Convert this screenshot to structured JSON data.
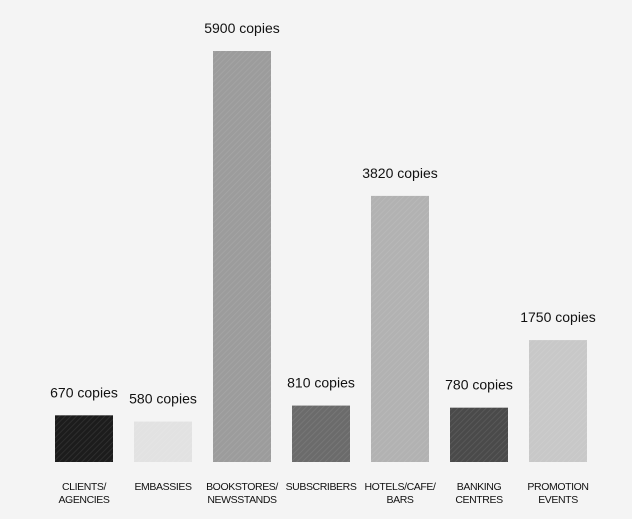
{
  "chart_data": {
    "type": "bar",
    "title": "",
    "xlabel": "",
    "ylabel": "",
    "categories": [
      [
        "CLIENTS/",
        "AGENCIES"
      ],
      [
        "EMBASSIES"
      ],
      [
        "BOOKSTORES/",
        "NEWSSTANDS"
      ],
      [
        "SUBSCRIBERS"
      ],
      [
        "HOTELS/CAFE/",
        "BARS"
      ],
      [
        "BANKING",
        "CENTRES"
      ],
      [
        "PROMOTION",
        "EVENTS"
      ]
    ],
    "values": [
      670,
      580,
      5900,
      810,
      3820,
      780,
      1750
    ],
    "value_labels": [
      "670 copies",
      "580 copies",
      "5900 copies",
      "810 copies",
      "3820 copies",
      "780 copies",
      "1750 copies"
    ],
    "bar_colors": [
      "#1c1c1c",
      "#e2e2e2",
      "#9c9c9c",
      "#6b6b6b",
      "#b2b2b2",
      "#4a4a4a",
      "#c8c8c8"
    ],
    "ylim": [
      0,
      5900
    ],
    "grid": false,
    "legend": "none"
  }
}
